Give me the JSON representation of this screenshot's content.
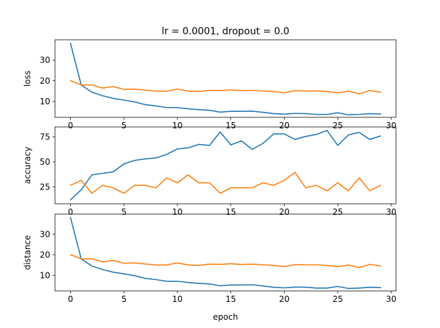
{
  "title": "lr = 0.0001, dropout = 0.0",
  "chart_data": [
    {
      "type": "line",
      "ylabel": "loss",
      "xlabel": "",
      "xlim": [
        -1.45,
        30.45
      ],
      "ylim": [
        2.4,
        39.7
      ],
      "xticks": [
        0,
        5,
        10,
        15,
        20,
        25,
        30
      ],
      "yticks": [
        10,
        20,
        30
      ],
      "colors": [
        "#1f77b4",
        "#ff7f0e"
      ],
      "x": [
        0,
        1,
        2,
        3,
        4,
        5,
        6,
        7,
        8,
        9,
        10,
        11,
        12,
        13,
        14,
        15,
        16,
        17,
        18,
        19,
        20,
        21,
        22,
        23,
        24,
        25,
        26,
        27,
        28,
        29
      ],
      "series": [
        {
          "values": [
            38,
            18,
            14.5,
            12.8,
            11.5,
            10.7,
            9.8,
            8.5,
            7.9,
            7.1,
            7.1,
            6.5,
            6.1,
            5.8,
            4.9,
            5.3,
            5.3,
            5.4,
            4.8,
            4.2,
            3.9,
            4.3,
            4.2,
            3.8,
            3.8,
            4.6,
            3.6,
            3.8,
            4.2,
            4.0
          ]
        },
        {
          "values": [
            20,
            18,
            18,
            16.5,
            17.2,
            15.8,
            16,
            15.5,
            15,
            15,
            16,
            15,
            14.8,
            15.4,
            15.3,
            15.6,
            15.2,
            15.4,
            15.1,
            14.8,
            14.2,
            15.2,
            15.1,
            15.1,
            14.8,
            14.2,
            15,
            13.7,
            15.3,
            14.5
          ]
        }
      ]
    },
    {
      "type": "line",
      "ylabel": "accuracy",
      "xlabel": "",
      "xlim": [
        -1.45,
        30.45
      ],
      "ylim": [
        8,
        85
      ],
      "xticks": [
        0,
        5,
        10,
        15,
        20,
        25,
        30
      ],
      "yticks": [
        25,
        50,
        75
      ],
      "colors": [
        "#1f77b4",
        "#ff7f0e"
      ],
      "x": [
        0,
        1,
        2,
        3,
        4,
        5,
        6,
        7,
        8,
        9,
        10,
        11,
        12,
        13,
        14,
        15,
        16,
        17,
        18,
        19,
        20,
        21,
        22,
        23,
        24,
        25,
        26,
        27,
        28,
        29
      ],
      "series": [
        {
          "values": [
            12,
            22,
            37,
            38.5,
            40,
            48,
            51.5,
            53,
            54,
            57.5,
            63,
            64,
            67.5,
            66.5,
            80,
            67,
            71,
            62.5,
            68.5,
            78,
            78,
            72.5,
            75.5,
            77.5,
            81.5,
            66.5,
            77,
            79.5,
            72.5,
            76
          ]
        },
        {
          "values": [
            26.5,
            31.5,
            18.5,
            26.5,
            24,
            18.5,
            26.5,
            26.5,
            24,
            34,
            29,
            37,
            29,
            29,
            18.5,
            24,
            24,
            24,
            29,
            26.5,
            31.5,
            39.5,
            24,
            26.5,
            21,
            29,
            21,
            34,
            21,
            26.5
          ]
        }
      ]
    },
    {
      "type": "line",
      "ylabel": "distance",
      "xlabel": "epoch",
      "xlim": [
        -1.45,
        30.45
      ],
      "ylim": [
        2.4,
        39.7
      ],
      "xticks": [
        0,
        5,
        10,
        15,
        20,
        25,
        30
      ],
      "yticks": [
        10,
        20,
        30
      ],
      "colors": [
        "#1f77b4",
        "#ff7f0e"
      ],
      "x": [
        0,
        1,
        2,
        3,
        4,
        5,
        6,
        7,
        8,
        9,
        10,
        11,
        12,
        13,
        14,
        15,
        16,
        17,
        18,
        19,
        20,
        21,
        22,
        23,
        24,
        25,
        26,
        27,
        28,
        29
      ],
      "series": [
        {
          "values": [
            38,
            18,
            14.5,
            12.8,
            11.5,
            10.7,
            9.8,
            8.5,
            7.9,
            7.1,
            7.1,
            6.5,
            6.1,
            5.8,
            4.9,
            5.3,
            5.3,
            5.4,
            4.8,
            4.2,
            3.9,
            4.3,
            4.2,
            3.8,
            3.8,
            4.6,
            3.6,
            3.8,
            4.2,
            4.0
          ]
        },
        {
          "values": [
            20,
            18,
            18,
            16.5,
            17.2,
            15.8,
            16,
            15.5,
            15,
            15,
            16,
            15,
            14.8,
            15.4,
            15.3,
            15.6,
            15.2,
            15.4,
            15.1,
            14.8,
            14.2,
            15.2,
            15.1,
            15.1,
            14.8,
            14.2,
            15,
            13.7,
            15.3,
            14.5
          ]
        }
      ]
    }
  ]
}
